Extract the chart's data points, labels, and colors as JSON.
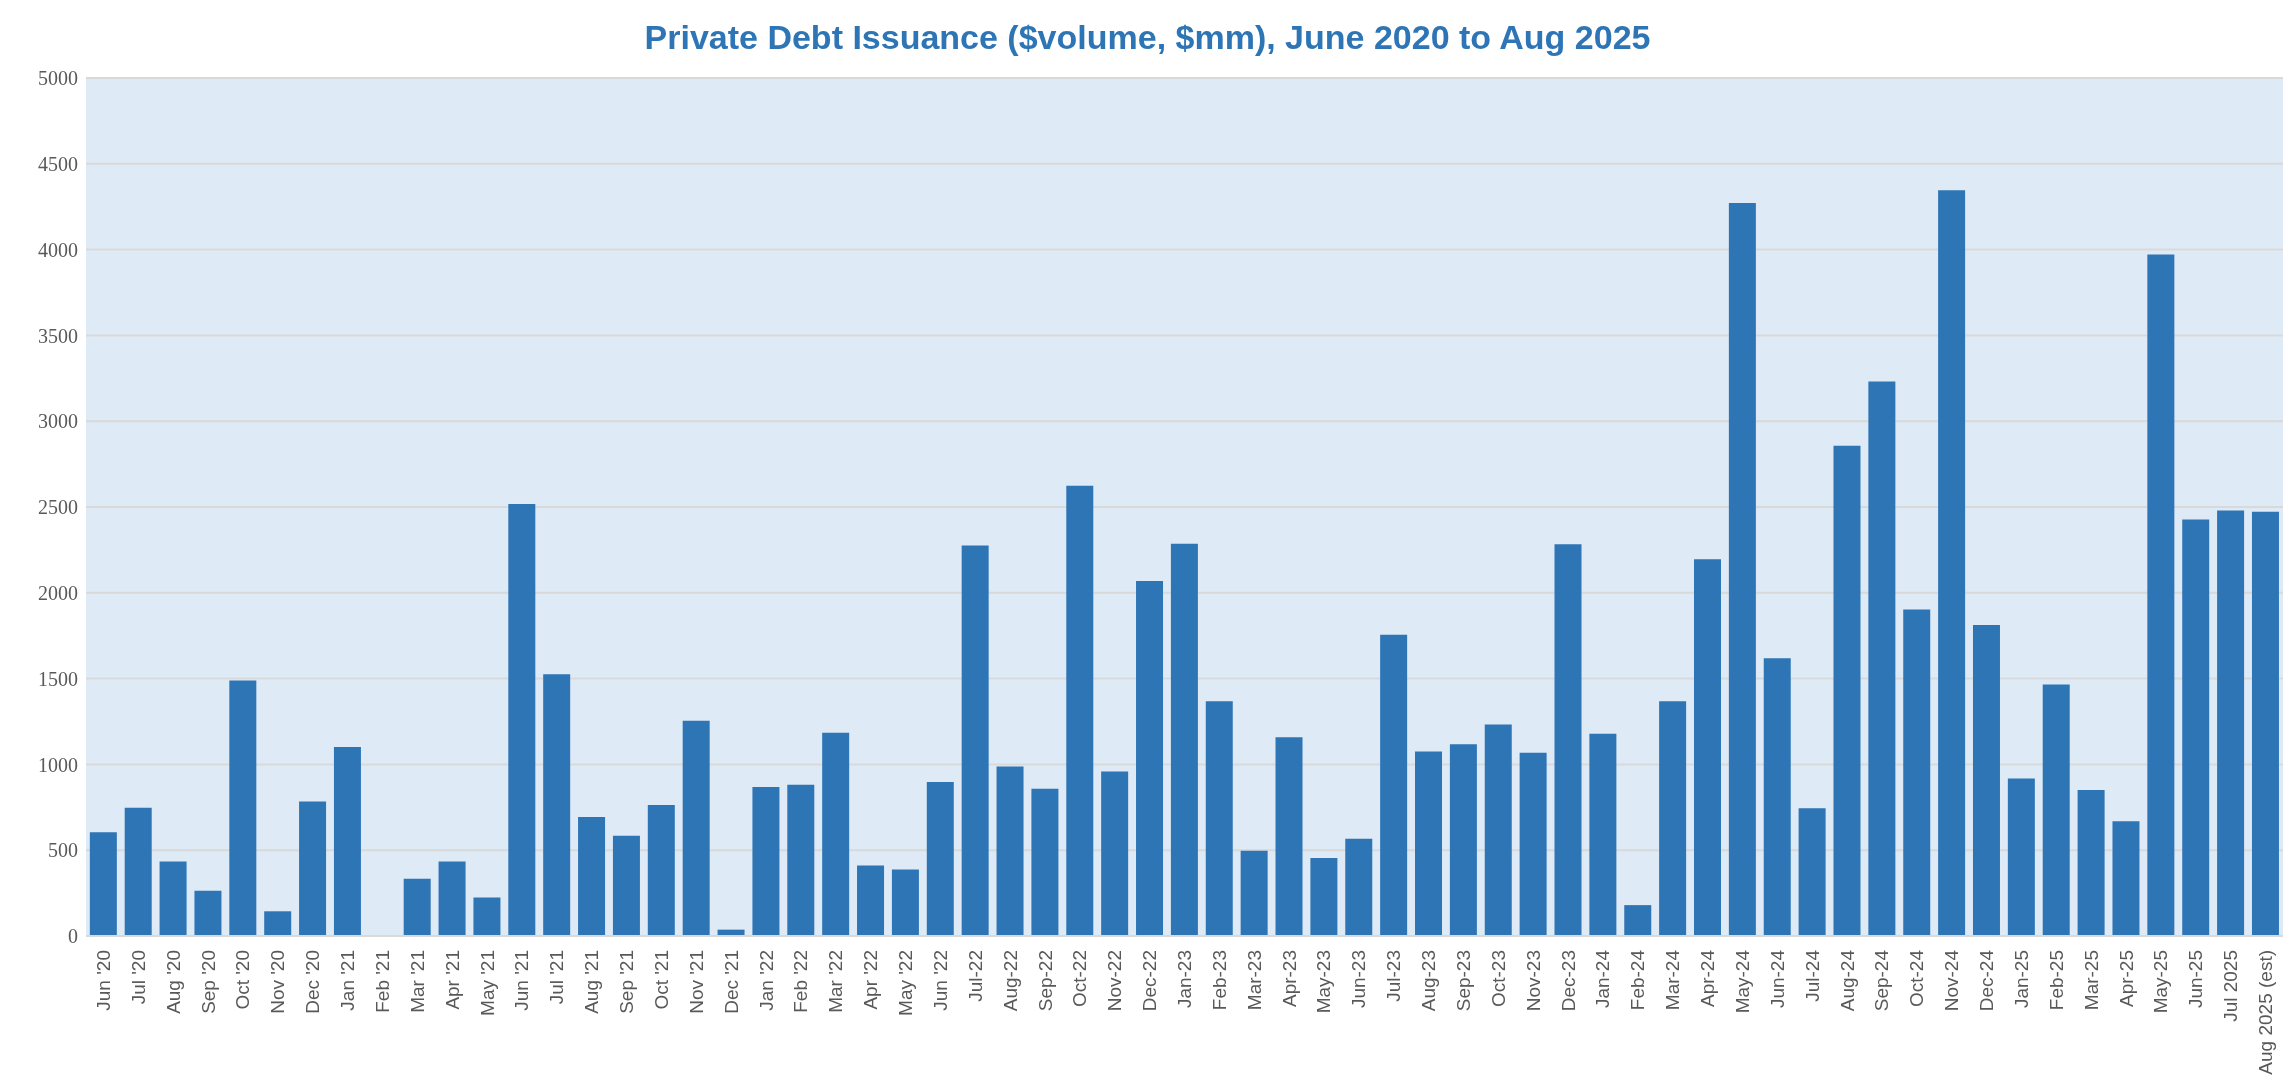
{
  "chart_data": {
    "type": "bar",
    "title": "Private Debt Issuance ($volume, $mm), June 2020 to Aug 2025",
    "categories": [
      "Jun '20",
      "Jul '20",
      "Aug '20",
      "Sep '20",
      "Oct '20",
      "Nov '20",
      "Dec '20",
      "Jan '21",
      "Feb '21",
      "Mar '21",
      "Apr '21",
      "May '21",
      "Jun '21",
      "Jul '21",
      "Aug '21",
      "Sep '21",
      "Oct '21",
      "Nov '21",
      "Dec '21",
      "Jan '22",
      "Feb '22",
      "Mar '22",
      "Apr '22",
      "May '22",
      "Jun '22",
      "Jul-22",
      "Aug-22",
      "Sep-22",
      "Oct-22",
      "Nov-22",
      "Dec-22",
      "Jan-23",
      "Feb-23",
      "Mar-23",
      "Apr-23",
      "May-23",
      "Jun-23",
      "Jul-23",
      "Aug-23",
      "Sep-23",
      "Oct-23",
      "Nov-23",
      "Dec-23",
      "Jan-24",
      "Feb-24",
      "Mar-24",
      "Apr-24",
      "May-24",
      "Jun-24",
      "Jul-24",
      "Aug-24",
      "Sep-24",
      "Oct-24",
      "Nov-24",
      "Dec-24",
      "Jan-25",
      "Feb-25",
      "Mar-25",
      "Apr-25",
      "May-25",
      "Jun-25",
      "Jul 2025",
      "Aug 2025 (est)"
    ],
    "values": [
      604,
      748,
      434,
      264,
      1489,
      144,
      784,
      1101,
      0,
      334,
      434,
      224,
      2517,
      1525,
      694,
      584,
      764,
      1255,
      37,
      868,
      881,
      1185,
      411,
      387,
      898,
      2276,
      988,
      858,
      2624,
      958,
      2069,
      2286,
      1368,
      497,
      1158,
      454,
      567,
      1756,
      1075,
      1118,
      1232,
      1068,
      2283,
      1178,
      180,
      1368,
      2196,
      4272,
      1619,
      744,
      2857,
      3231,
      1903,
      4346,
      1812,
      918,
      1465,
      851,
      668,
      3972,
      2427,
      2480,
      2473
    ],
    "color": "#2e75b6",
    "ylim": [
      0,
      5000
    ],
    "yticks": [
      0,
      500,
      1000,
      1500,
      2000,
      2500,
      3000,
      3500,
      4000,
      4500,
      5000
    ],
    "grid": "y"
  }
}
